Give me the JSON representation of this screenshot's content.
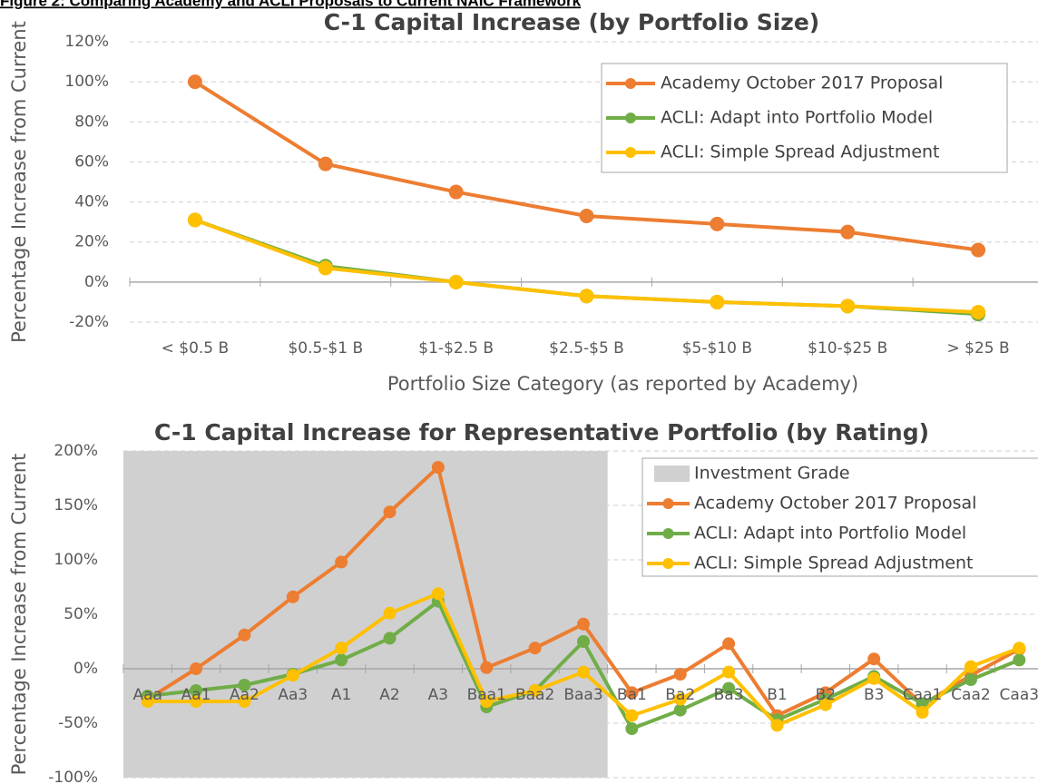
{
  "figure_title": "Figure 2: Comparing Academy and ACLI Proposals to Current NAIC Framework",
  "chart_data": [
    {
      "type": "line",
      "title": "C-1 Capital Increase (by Portfolio Size)",
      "x_label": "Portfolio Size Category (as reported by Academy)",
      "y_label": "Percentage Increase from Current",
      "categories": [
        "< $0.5 B",
        "$0.5-$1 B",
        "$1-$2.5 B",
        "$2.5-$5 B",
        "$5-$10 B",
        "$10-$25 B",
        "> $25 B"
      ],
      "series": [
        {
          "name": "Academy October 2017 Proposal",
          "color": "#ed7d31",
          "values": [
            100,
            59,
            45,
            33,
            29,
            25,
            16
          ]
        },
        {
          "name": "ACLI: Adapt into Portfolio Model",
          "color": "#70ad47",
          "values": [
            31,
            8,
            0,
            -7,
            -10,
            -12,
            -16
          ]
        },
        {
          "name": "ACLI: Simple Spread Adjustment",
          "color": "#ffc000",
          "values": [
            31,
            7,
            0,
            -7,
            -10,
            -12,
            -15
          ]
        }
      ],
      "ylim": [
        -20,
        120
      ],
      "yticks": [
        {
          "value": -20,
          "label": "-20%"
        },
        {
          "value": 0,
          "label": "0%"
        },
        {
          "value": 20,
          "label": "20%"
        },
        {
          "value": 40,
          "label": "40%"
        },
        {
          "value": 60,
          "label": "60%"
        },
        {
          "value": 80,
          "label": "80%"
        },
        {
          "value": 100,
          "label": "100%"
        },
        {
          "value": 120,
          "label": "120%"
        }
      ],
      "grid": true,
      "legend": "upper right"
    },
    {
      "type": "line",
      "title": "C-1 Capital Increase for Representative Portfolio (by Rating)",
      "y_label": "Percentage Increase from Current",
      "categories": [
        "Aaa",
        "Aa1",
        "Aa2",
        "Aa3",
        "A1",
        "A2",
        "A3",
        "Baa1",
        "Baa2",
        "Baa3",
        "Ba1",
        "Ba2",
        "Ba3",
        "B1",
        "B2",
        "B3",
        "Caa1",
        "Caa2",
        "Caa3"
      ],
      "shaded_region": {
        "name": "Investment Grade",
        "color": "#d0d0d0",
        "from": "Aaa",
        "to": "Baa3"
      },
      "series": [
        {
          "name": "Academy October 2017 Proposal",
          "color": "#ed7d31",
          "values": [
            -28,
            0,
            31,
            66,
            98,
            144,
            185,
            1,
            19,
            41,
            -22,
            -5,
            23,
            -43,
            -22,
            9,
            -33,
            -6,
            18
          ]
        },
        {
          "name": "ACLI: Adapt into Portfolio Model",
          "color": "#70ad47",
          "values": [
            -25,
            -20,
            -15,
            -5,
            8,
            28,
            62,
            -35,
            -20,
            25,
            -55,
            -38,
            -18,
            -47,
            -28,
            -7,
            -32,
            -10,
            8
          ]
        },
        {
          "name": "ACLI: Simple Spread Adjustment",
          "color": "#ffc000",
          "values": [
            -30,
            -30,
            -30,
            -6,
            19,
            51,
            69,
            -30,
            -20,
            -3,
            -43,
            -28,
            -3,
            -52,
            -33,
            -9,
            -40,
            2,
            19
          ]
        }
      ],
      "ylim": [
        -100,
        200
      ],
      "yticks": [
        {
          "value": -100,
          "label": "-100%"
        },
        {
          "value": -50,
          "label": "-50%"
        },
        {
          "value": 0,
          "label": "0%"
        },
        {
          "value": 50,
          "label": "50%"
        },
        {
          "value": 100,
          "label": "100%"
        },
        {
          "value": 150,
          "label": "150%"
        },
        {
          "value": 200,
          "label": "200%"
        }
      ],
      "grid": true,
      "legend": "upper right"
    }
  ]
}
